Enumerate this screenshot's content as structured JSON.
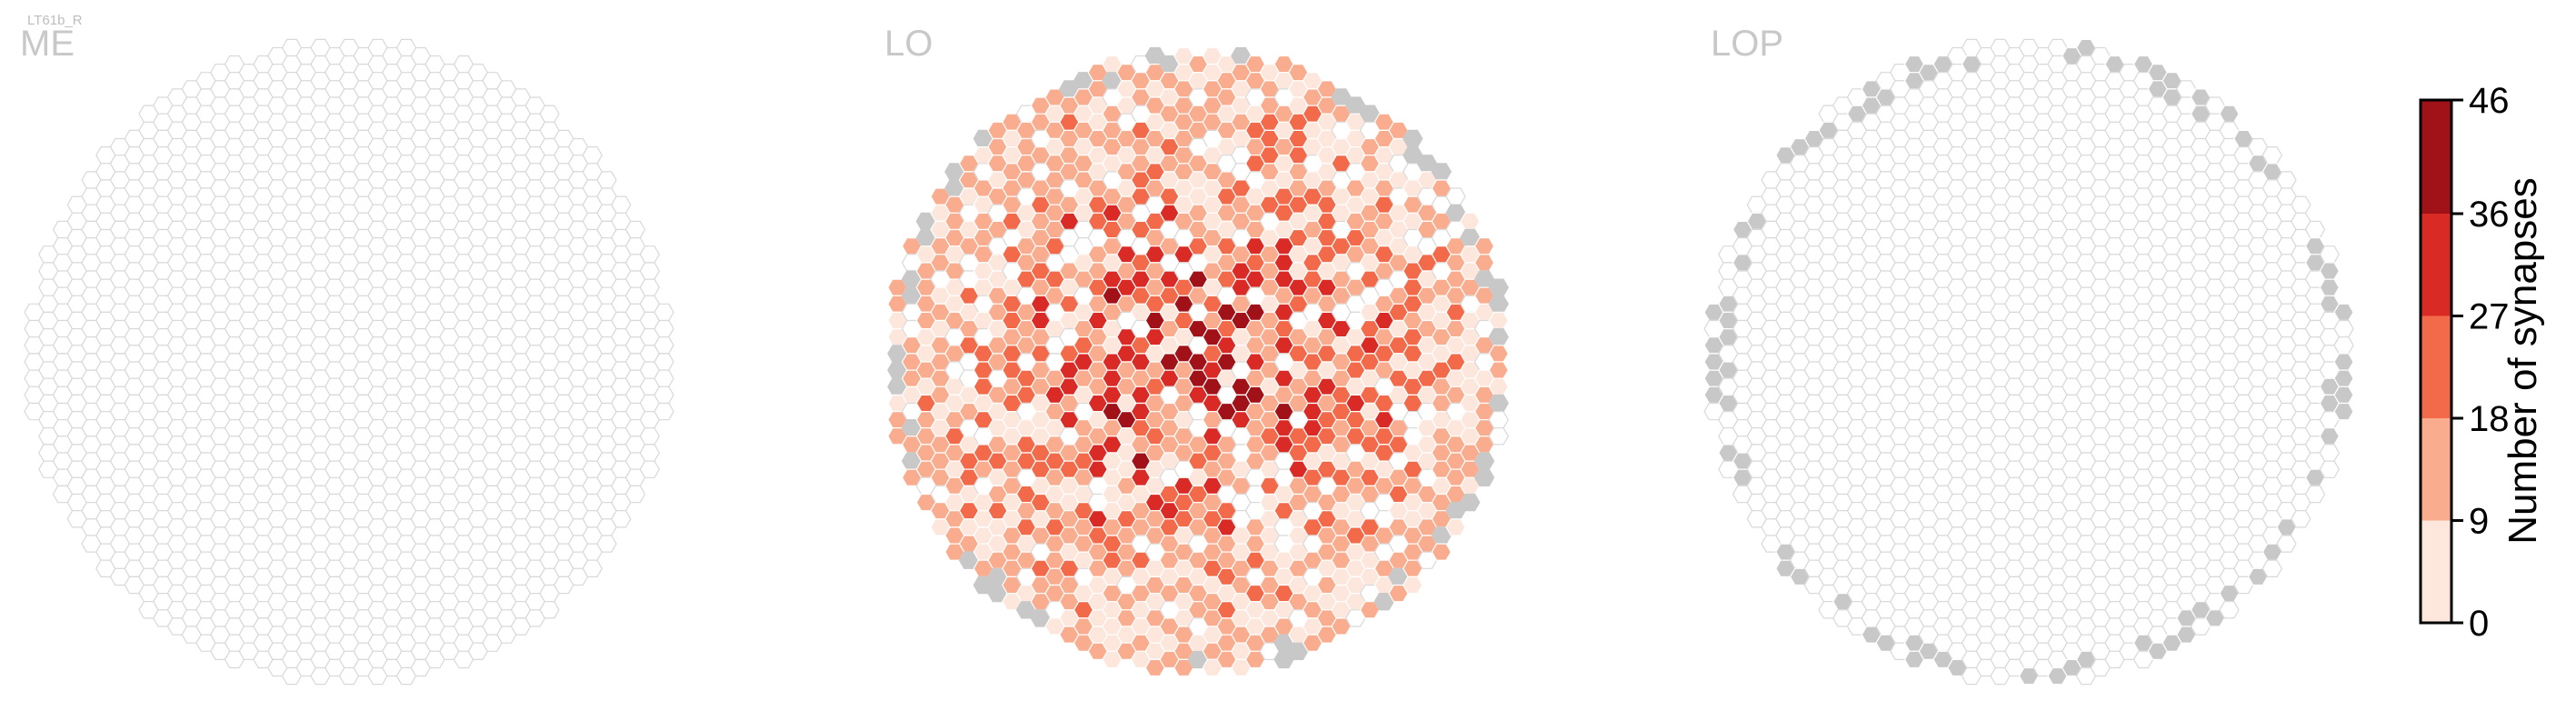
{
  "cell_label": "LT61b_R",
  "panels": [
    {
      "id": "me",
      "title": "ME"
    },
    {
      "id": "lo",
      "title": "LO"
    },
    {
      "id": "lop",
      "title": "LOP"
    }
  ],
  "colors": {
    "empty_fill": "#ffffff",
    "empty_stroke": "#d9d9d9",
    "no_synapse_column": "#c8c8c8",
    "bins": [
      "#fde7dc",
      "#f9ac8e",
      "#f26a4a",
      "#d92a26",
      "#a11118"
    ]
  },
  "chart_data": {
    "type": "heatmap",
    "description_values": "hexagonal column maps; cells colored by binned number of synapses per column",
    "colorbar": {
      "label": "Number of synapses",
      "ticks": [
        0,
        9,
        18,
        27,
        36,
        46
      ],
      "range": [
        0,
        46
      ]
    },
    "panels": [
      {
        "name": "ME",
        "occupied_columns": 0,
        "outer_gray_columns": 0
      },
      {
        "name": "LO",
        "dominant_bins": [
          1,
          2,
          3
        ],
        "max_synapses": 46
      },
      {
        "name": "LOP",
        "occupied_columns": 0,
        "outer_gray_columns": "ring"
      }
    ]
  }
}
